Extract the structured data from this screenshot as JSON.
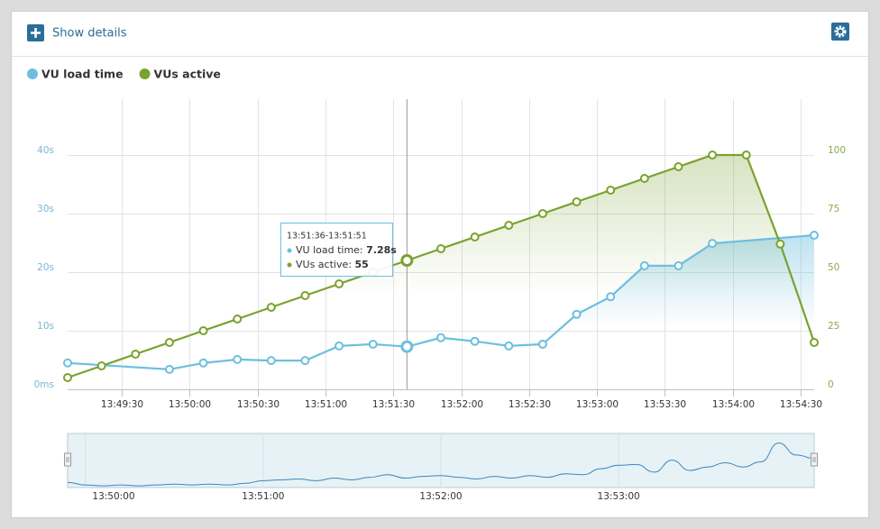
{
  "header": {
    "button": "Show details"
  },
  "chart_data": {
    "type": "line",
    "x": [
      "13:49:06",
      "13:49:21",
      "13:49:36",
      "13:49:51",
      "13:50:06",
      "13:50:21",
      "13:50:36",
      "13:50:51",
      "13:51:06",
      "13:51:21",
      "13:51:36",
      "13:51:51",
      "13:52:06",
      "13:52:21",
      "13:52:36",
      "13:52:51",
      "13:53:06",
      "13:53:21",
      "13:53:36",
      "13:53:51",
      "13:54:06",
      "13:54:21",
      "13:54:36"
    ],
    "series": [
      {
        "name": "VU load time",
        "color": "#6cbfdf",
        "axis": "y",
        "x": [
          "13:49:06",
          "13:49:51",
          "13:50:06",
          "13:50:21",
          "13:50:36",
          "13:50:51",
          "13:51:06",
          "13:51:21",
          "13:51:36",
          "13:51:51",
          "13:52:06",
          "13:52:21",
          "13:52:36",
          "13:52:51",
          "13:53:06",
          "13:53:21",
          "13:53:36",
          "13:53:51",
          "13:54:36"
        ],
        "values": [
          4.5,
          3.4,
          4.5,
          5.1,
          4.9,
          4.9,
          7.4,
          7.7,
          7.28,
          8.8,
          8.2,
          7.4,
          7.7,
          12.8,
          15.8,
          21.1,
          21.1,
          24.9,
          26.3
        ]
      },
      {
        "name": "VUs active",
        "color": "#79a22e",
        "axis": "y2",
        "values": [
          5,
          10,
          15,
          20,
          25,
          30,
          35,
          40,
          45,
          50,
          55,
          60,
          65,
          70,
          75,
          80,
          85,
          90,
          95,
          100,
          100,
          62,
          20
        ]
      }
    ],
    "xlim": [
      "13:49:06",
      "13:54:36"
    ],
    "xticks": [
      "13:49:30",
      "13:50:00",
      "13:50:30",
      "13:51:00",
      "13:51:30",
      "13:52:00",
      "13:52:30",
      "13:53:00",
      "13:53:30",
      "13:54:00",
      "13:54:30"
    ],
    "ylim": [
      0,
      50
    ],
    "yticks": [
      {
        "value": 0,
        "label": "0ms"
      },
      {
        "value": 10,
        "label": "10s"
      },
      {
        "value": 20,
        "label": "20s"
      },
      {
        "value": 30,
        "label": "30s"
      },
      {
        "value": 40,
        "label": "40s"
      }
    ],
    "y2lim": [
      0,
      125
    ],
    "y2ticks": [
      0,
      25,
      50,
      75,
      100
    ],
    "grid": true,
    "legend": "top-left",
    "tooltip": {
      "title": "13:51:36-13:51:51",
      "rows": [
        {
          "label": "VU load time:",
          "value": "7.28s"
        },
        {
          "label": "VUs active:",
          "value": "55"
        }
      ]
    },
    "navigator": {
      "xlim": [
        "13:49:54",
        "13:54:06"
      ],
      "xticks": [
        "13:50:00",
        "13:51:00",
        "13:52:00",
        "13:53:00"
      ],
      "ylim": [
        0,
        60
      ],
      "color": "#3f86bb",
      "values": [
        6,
        3,
        2,
        3,
        2,
        3,
        4,
        3,
        4,
        3,
        5,
        8,
        9,
        10,
        8,
        11,
        9,
        12,
        15,
        11,
        13,
        14,
        12,
        10,
        13,
        11,
        14,
        12,
        16,
        15,
        22,
        26,
        27,
        18,
        32,
        20,
        24,
        29,
        24,
        30,
        52,
        38,
        34
      ]
    }
  }
}
